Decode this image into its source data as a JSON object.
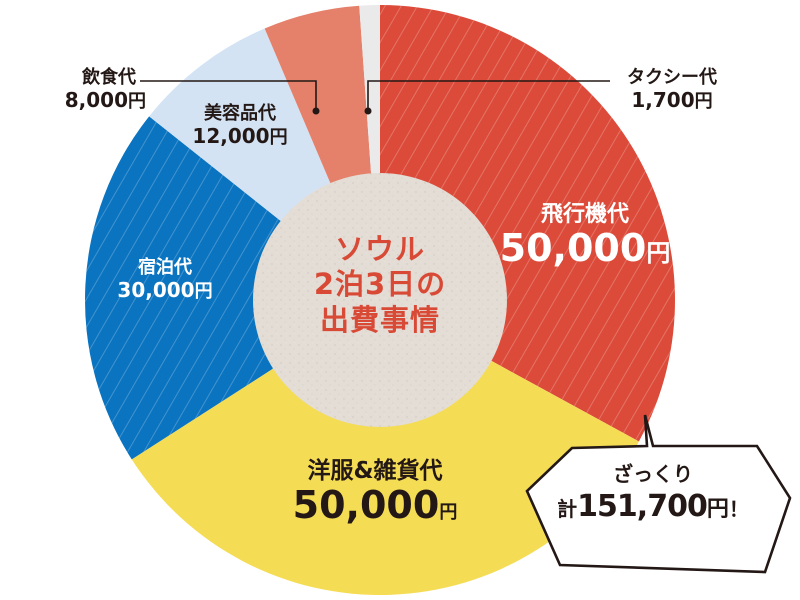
{
  "center": {
    "line1": "ソウル",
    "line2": "2泊3日の",
    "line3": "出費事情"
  },
  "labels": {
    "flight": {
      "name": "飛行機代",
      "amount": "50,000",
      "unit": "円"
    },
    "clothes": {
      "name": "洋服&雑貨代",
      "amount": "50,000",
      "unit": "円"
    },
    "lodging": {
      "name": "宿泊代",
      "amount": "30,000",
      "unit": "円"
    },
    "beauty": {
      "name": "美容品代",
      "amount": "12,000",
      "unit": "円"
    },
    "food": {
      "name": "飲食代",
      "amount": "8,000",
      "unit": "円"
    },
    "taxi": {
      "name": "タクシー代",
      "amount": "1,700",
      "unit": "円"
    }
  },
  "bubble": {
    "line1": "ざっくり",
    "prefix": "計",
    "total": "151,700",
    "unit": "円",
    "suffix": "！"
  },
  "colors": {
    "flight": "#dc4b3a",
    "clothes": "#f5dc55",
    "lodging": "#0b74c0",
    "beauty": "#d3e3f3",
    "food": "#e5806a",
    "taxi": "#eaeaea",
    "center": "#e3ddd6",
    "center_text": "#d94a36",
    "dark_text": "#231815"
  },
  "chart_data": {
    "type": "pie",
    "title": "ソウル 2泊3日の 出費事情",
    "categories": [
      "飛行機代",
      "洋服&雑貨代",
      "宿泊代",
      "美容品代",
      "飲食代",
      "タクシー代"
    ],
    "values": [
      50000,
      50000,
      30000,
      12000,
      8000,
      1700
    ],
    "unit": "円",
    "total": 151700,
    "donut": true,
    "start_angle": "12 o'clock",
    "direction": "clockwise",
    "annotation": "ざっくり 計151,700円！",
    "legend": "none (direct labels)"
  }
}
